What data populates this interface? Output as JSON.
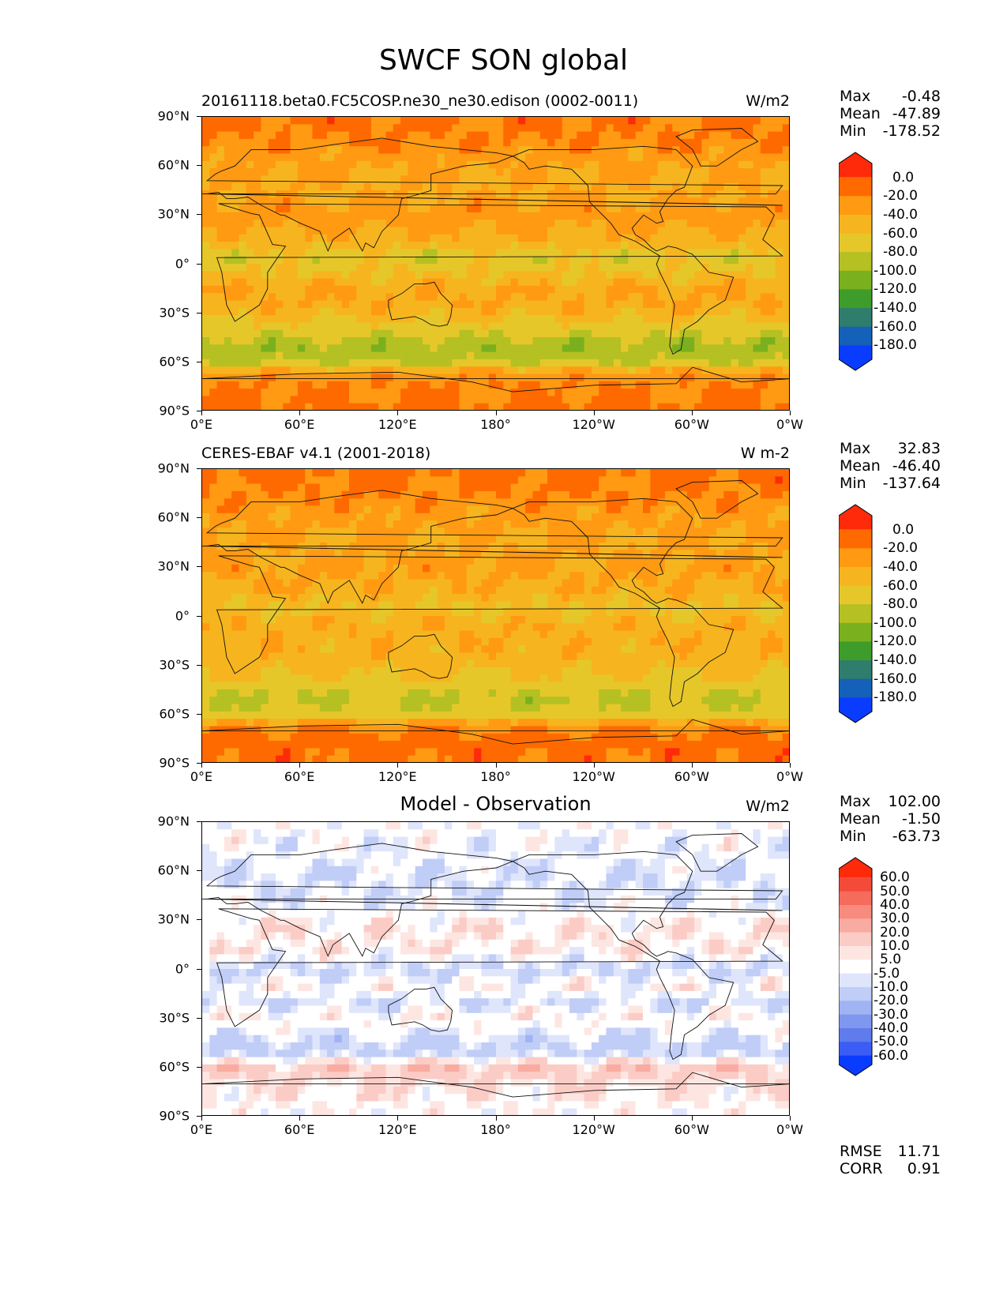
{
  "title": "SWCF SON global",
  "x_tick_labels": [
    "0°E",
    "60°E",
    "120°E",
    "180°",
    "120°W",
    "60°W",
    "0°W"
  ],
  "y_tick_labels": [
    "90°N",
    "60°N",
    "30°N",
    "0°",
    "30°S",
    "60°S",
    "90°S"
  ],
  "chart_data": [
    {
      "type": "heatmap",
      "title": "20161118.beta0.FC5COSP.ne30_ne30.edison (0002-0011)",
      "units": "W/m2",
      "stats": {
        "max_label": "Max",
        "max": "-0.48",
        "mean_label": "Mean",
        "mean": "-47.89",
        "min_label": "Min",
        "min": "-178.52"
      },
      "colorbar_levels": [
        "0.0",
        "-20.0",
        "-40.0",
        "-60.0",
        "-80.0",
        "-100.0",
        "-120.0",
        "-140.0",
        "-160.0",
        "-180.0"
      ],
      "colorbar_colors": [
        "#ff2a0a",
        "#ff6a00",
        "#ff9a12",
        "#f6b51e",
        "#e6c72a",
        "#b5c022",
        "#7ab01e",
        "#3e9c2a",
        "#2f7d6c",
        "#1560b8",
        "#0a3cff"
      ],
      "xlim": [
        0,
        360
      ],
      "ylim": [
        -90,
        90
      ],
      "zonal_profile": [
        {
          "lat": 90,
          "value": -15
        },
        {
          "lat": 75,
          "value": -22
        },
        {
          "lat": 60,
          "value": -38
        },
        {
          "lat": 45,
          "value": -42
        },
        {
          "lat": 30,
          "value": -30
        },
        {
          "lat": 15,
          "value": -45
        },
        {
          "lat": 5,
          "value": -72
        },
        {
          "lat": -5,
          "value": -60
        },
        {
          "lat": -15,
          "value": -40
        },
        {
          "lat": -25,
          "value": -42
        },
        {
          "lat": -40,
          "value": -70
        },
        {
          "lat": -50,
          "value": -95
        },
        {
          "lat": -60,
          "value": -80
        },
        {
          "lat": -67,
          "value": -30
        },
        {
          "lat": -75,
          "value": -20
        },
        {
          "lat": -90,
          "value": -15
        }
      ]
    },
    {
      "type": "heatmap",
      "title": "CERES-EBAF v4.1 (2001-2018)",
      "units": "W m-2",
      "stats": {
        "max_label": "Max",
        "max": "32.83",
        "mean_label": "Mean",
        "mean": "-46.40",
        "min_label": "Min",
        "min": "-137.64"
      },
      "colorbar_levels": [
        "0.0",
        "-20.0",
        "-40.0",
        "-60.0",
        "-80.0",
        "-100.0",
        "-120.0",
        "-140.0",
        "-160.0",
        "-180.0"
      ],
      "colorbar_colors": [
        "#ff2a0a",
        "#ff6a00",
        "#ff9a12",
        "#f6b51e",
        "#e6c72a",
        "#b5c022",
        "#7ab01e",
        "#3e9c2a",
        "#2f7d6c",
        "#1560b8",
        "#0a3cff"
      ],
      "xlim": [
        0,
        360
      ],
      "ylim": [
        -90,
        90
      ],
      "zonal_profile": [
        {
          "lat": 90,
          "value": -15
        },
        {
          "lat": 75,
          "value": -20
        },
        {
          "lat": 60,
          "value": -35
        },
        {
          "lat": 45,
          "value": -40
        },
        {
          "lat": 30,
          "value": -35
        },
        {
          "lat": 15,
          "value": -45
        },
        {
          "lat": 5,
          "value": -62
        },
        {
          "lat": -5,
          "value": -45
        },
        {
          "lat": -15,
          "value": -45
        },
        {
          "lat": -25,
          "value": -48
        },
        {
          "lat": -40,
          "value": -65
        },
        {
          "lat": -50,
          "value": -85
        },
        {
          "lat": -60,
          "value": -70
        },
        {
          "lat": -67,
          "value": -25
        },
        {
          "lat": -75,
          "value": -12
        },
        {
          "lat": -90,
          "value": -15
        }
      ]
    },
    {
      "type": "heatmap",
      "title": "Model - Observation",
      "units": "W/m2",
      "stats": {
        "max_label": "Max",
        "max": "102.00",
        "mean_label": "Mean",
        "mean": "-1.50",
        "min_label": "Min",
        "min": "-63.73"
      },
      "extra_stats": {
        "rmse_label": "RMSE",
        "rmse": "11.71",
        "corr_label": "CORR",
        "corr": "0.91"
      },
      "colorbar_levels": [
        "60.0",
        "50.0",
        "40.0",
        "30.0",
        "20.0",
        "10.0",
        "5.0",
        "-5.0",
        "-10.0",
        "-20.0",
        "-30.0",
        "-40.0",
        "-50.0",
        "-60.0"
      ],
      "colorbar_colors": [
        "#ff2a0a",
        "#f44a3a",
        "#f56b5c",
        "#f78b7e",
        "#f9aba2",
        "#fbccc5",
        "#fde6e2",
        "#ffffff",
        "#dfe5fb",
        "#c0cdf7",
        "#a0b3f3",
        "#7f97ef",
        "#5f7bec",
        "#3b5cf5",
        "#0a3cff"
      ],
      "xlim": [
        0,
        360
      ],
      "ylim": [
        -90,
        90
      ],
      "zonal_profile": [
        {
          "lat": 90,
          "value": 0
        },
        {
          "lat": 70,
          "value": -3
        },
        {
          "lat": 55,
          "value": -8
        },
        {
          "lat": 40,
          "value": -4
        },
        {
          "lat": 25,
          "value": 6
        },
        {
          "lat": 10,
          "value": 4
        },
        {
          "lat": 0,
          "value": -12
        },
        {
          "lat": -10,
          "value": 3
        },
        {
          "lat": -20,
          "value": -8
        },
        {
          "lat": -30,
          "value": 4
        },
        {
          "lat": -40,
          "value": -6
        },
        {
          "lat": -50,
          "value": -14
        },
        {
          "lat": -60,
          "value": 16
        },
        {
          "lat": -70,
          "value": 8
        },
        {
          "lat": -90,
          "value": 0
        }
      ]
    }
  ]
}
